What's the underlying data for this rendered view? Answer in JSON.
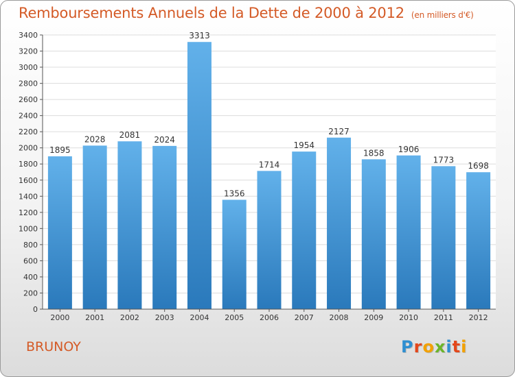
{
  "title": "Remboursements Annuels de la Dette de 2000 à 2012",
  "unit": "(en milliers d'€)",
  "commune": "BRUNOY",
  "brand": {
    "letters": [
      "P",
      "r",
      "o",
      "x",
      "i",
      "t",
      "i"
    ],
    "colors": [
      "#2e8fd1",
      "#e3471b",
      "#f2a100",
      "#6bb52a",
      "#2e8fd1",
      "#e3471b",
      "#f2a100"
    ]
  },
  "colors": {
    "bar_top": "#62b1ea",
    "bar_bottom": "#2a79bb",
    "title": "#d45a26",
    "axis": "#555555"
  },
  "chart_data": {
    "type": "bar",
    "categories": [
      "2000",
      "2001",
      "2002",
      "2003",
      "2004",
      "2005",
      "2006",
      "2007",
      "2008",
      "2009",
      "2010",
      "2011",
      "2012"
    ],
    "values": [
      1895,
      2028,
      2081,
      2024,
      3313,
      1356,
      1714,
      1954,
      2127,
      1858,
      1906,
      1773,
      1698
    ],
    "data_labels": [
      "1895",
      "2028",
      "2081",
      "2024",
      "3313",
      "1356",
      "1714",
      "1954",
      "2127",
      "1858",
      "1906",
      "1773",
      "1698"
    ],
    "yticks": [
      0,
      200,
      400,
      600,
      800,
      1000,
      1200,
      1400,
      1600,
      1800,
      2000,
      2200,
      2400,
      2600,
      2800,
      3000,
      3200,
      3400
    ],
    "ylim": [
      0,
      3400
    ],
    "grid": true,
    "xlabel": "",
    "ylabel": ""
  }
}
